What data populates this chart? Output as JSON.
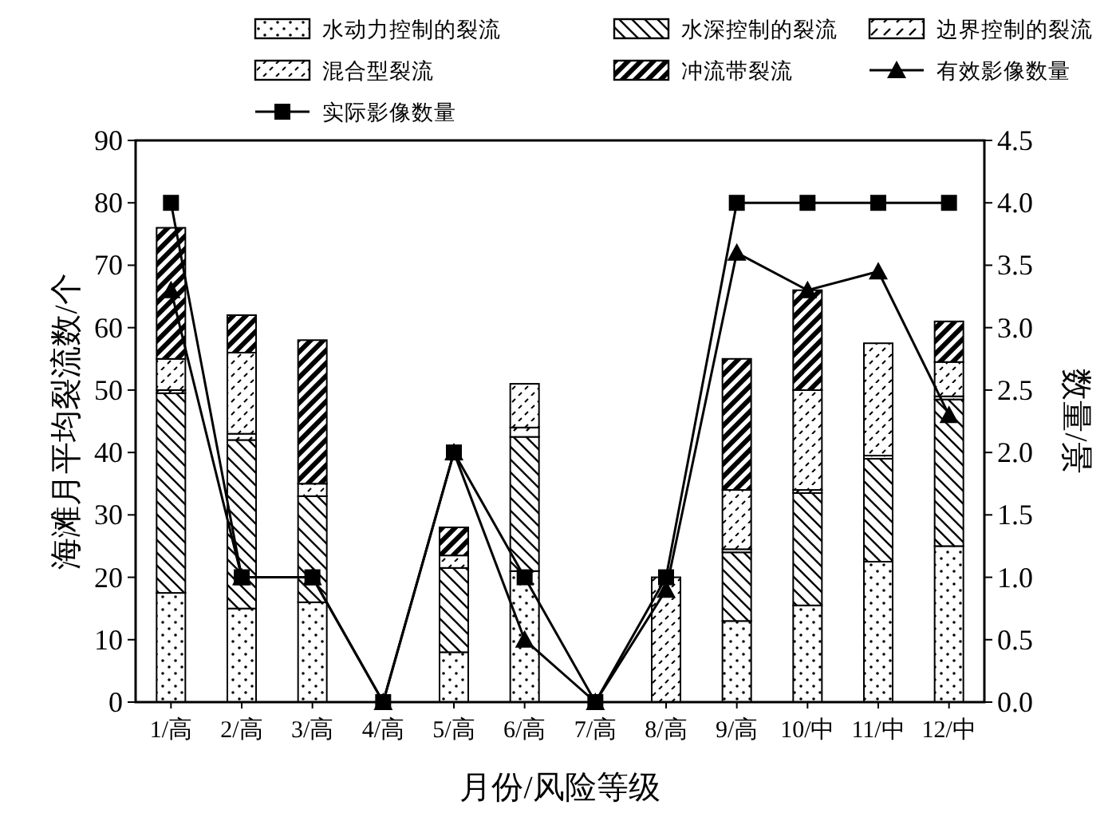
{
  "chart_data": {
    "type": "bar",
    "stacked": true,
    "xlabel": "月份/风险等级",
    "ylabel": "海滩月平均裂流数/个",
    "y2label": "数量/景",
    "categories": [
      "1/高",
      "2/高",
      "3/高",
      "4/高",
      "5/高",
      "6/高",
      "7/高",
      "8/高",
      "9/高",
      "10/中",
      "11/中",
      "12/中"
    ],
    "series": [
      {
        "name": "水动力控制的裂流",
        "color": "#000000",
        "values": [
          17.5,
          15,
          16,
          0,
          8,
          21,
          0,
          0,
          13,
          15.5,
          22.5,
          25
        ]
      },
      {
        "name": "水深控制的裂流",
        "color": "#000000",
        "values": [
          32,
          27,
          17,
          0,
          13.5,
          21.5,
          0,
          0,
          11,
          18,
          16.5,
          23.5
        ]
      },
      {
        "name": "边界控制的裂流",
        "color": "#000000",
        "values": [
          0.5,
          1,
          0,
          0,
          0,
          1.5,
          0,
          0,
          0.5,
          0.5,
          0.5,
          0.5
        ]
      },
      {
        "name": "混合型裂流",
        "color": "#000000",
        "values": [
          5,
          13,
          2,
          0,
          2,
          7,
          0,
          20,
          9.5,
          16,
          18,
          5.5
        ]
      },
      {
        "name": "冲流带裂流",
        "color": "#000000",
        "values": [
          21,
          6,
          23,
          0,
          4.5,
          0,
          0,
          0,
          21,
          16,
          0,
          6.5
        ]
      },
      {
        "name": "有效影像数量",
        "type": "line",
        "axis": "y2",
        "marker": "triangle",
        "color": "#000000",
        "values": [
          3.3,
          1,
          1,
          0,
          2,
          0.5,
          0,
          0.9,
          3.6,
          3.3,
          3.45,
          2.3
        ]
      },
      {
        "name": "实际影像数量",
        "type": "line",
        "axis": "y2",
        "marker": "square",
        "color": "#000000",
        "values": [
          4,
          1,
          1,
          0,
          2,
          1,
          0,
          1,
          4,
          4,
          4,
          4
        ]
      }
    ],
    "ylim": [
      0,
      90
    ],
    "yticks": [
      0,
      10,
      20,
      30,
      40,
      50,
      60,
      70,
      80,
      90
    ],
    "y2lim": [
      0,
      4.5
    ],
    "y2ticks": [
      {
        "value": 0,
        "label": "0.0"
      },
      {
        "value": 0.5,
        "label": "0.5"
      },
      {
        "value": 1,
        "label": "1.0"
      },
      {
        "value": 1.5,
        "label": "1.5"
      },
      {
        "value": 2,
        "label": "2.0"
      },
      {
        "value": 2.5,
        "label": "2.5"
      },
      {
        "value": 3,
        "label": "3.0"
      },
      {
        "value": 3.5,
        "label": "3.5"
      },
      {
        "value": 4,
        "label": "4.0"
      },
      {
        "value": 4.5,
        "label": "4.5"
      }
    ],
    "legend": "top"
  }
}
